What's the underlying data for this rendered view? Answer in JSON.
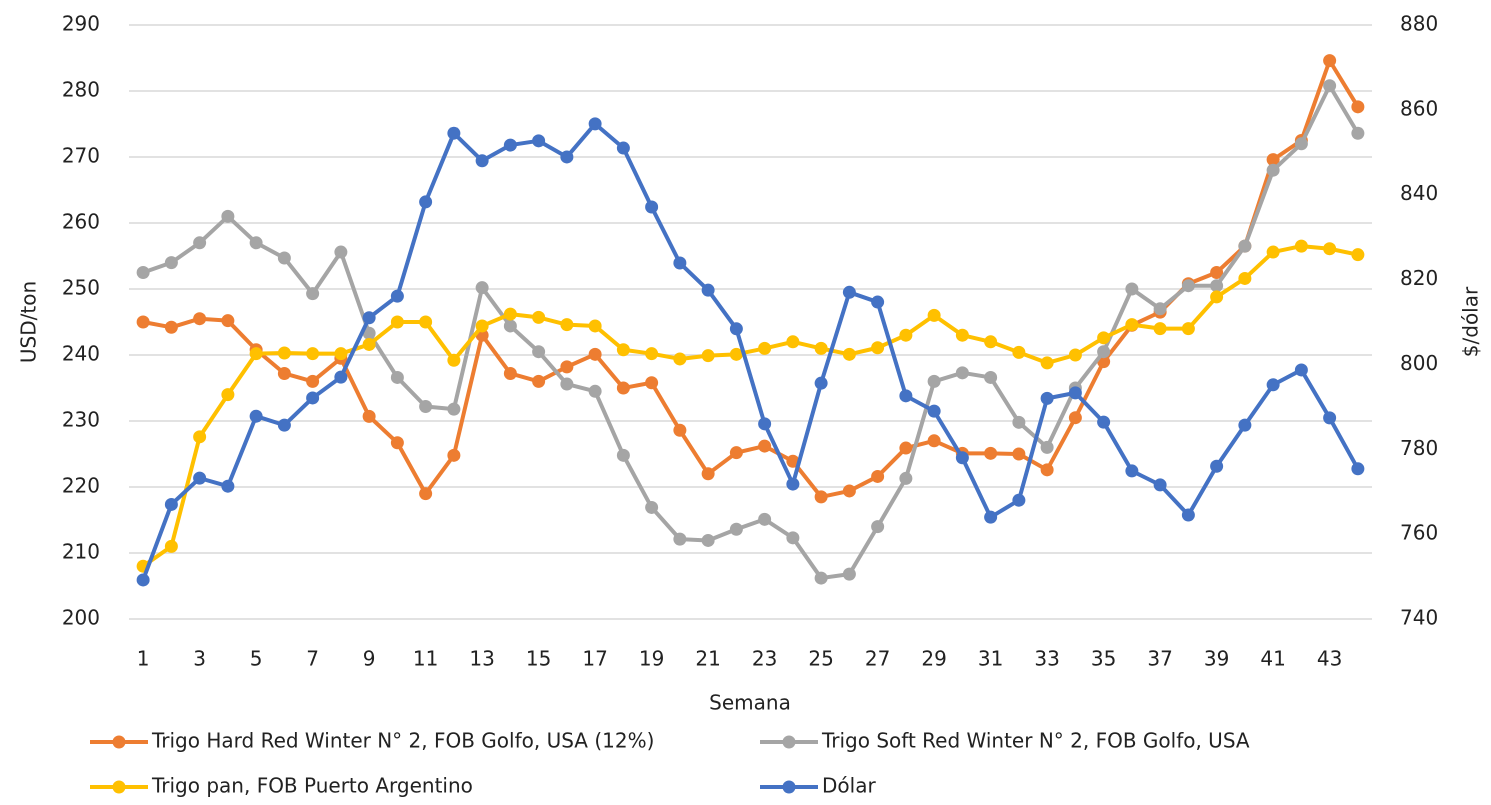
{
  "chart_data": {
    "type": "line",
    "x_label": "Semana",
    "y_label": "USD/ton",
    "y2_label": "$/dólar",
    "categories": [
      1,
      null,
      3,
      null,
      5,
      null,
      7,
      null,
      9,
      null,
      11,
      null,
      13,
      null,
      15,
      null,
      17,
      null,
      19,
      null,
      21,
      null,
      23,
      null,
      25,
      null,
      27,
      null,
      29,
      null,
      31,
      null,
      33,
      null,
      35,
      null,
      37,
      null,
      39,
      null,
      41,
      null,
      43,
      null
    ],
    "ylim": [
      200,
      290
    ],
    "yticks": [
      200,
      210,
      220,
      230,
      240,
      250,
      260,
      270,
      280,
      290
    ],
    "y2lim": [
      740,
      880
    ],
    "y2ticks": [
      740,
      760,
      780,
      800,
      820,
      840,
      860,
      880
    ],
    "grid": true,
    "legend": "bottom",
    "series": [
      {
        "name": "Trigo Hard Red Winter N° 2, FOB Golfo, USA (12%)",
        "color": "#ed7d31",
        "values": [
          245,
          244.2,
          245.5,
          245.2,
          240.8,
          237.2,
          236,
          239.5,
          230.7,
          226.7,
          219,
          224.8,
          243,
          237.2,
          236,
          238.2,
          240.1,
          235,
          235.8,
          228.6,
          222,
          225.2,
          226.2,
          223.9,
          218.5,
          219.4,
          221.6,
          225.9,
          227,
          225.1,
          225.1,
          225,
          222.6,
          230.5,
          239,
          244.5,
          246.5,
          250.8,
          252.5,
          256.5,
          269.6,
          272.5,
          284.6,
          277.6
        ]
      },
      {
        "name": "Trigo Soft Red Winter N° 2, FOB Golfo, USA",
        "color": "#a5a5a5",
        "values": [
          252.5,
          254,
          257,
          261,
          257,
          254.7,
          249.3,
          255.6,
          243.3,
          236.6,
          232.2,
          231.8,
          250.2,
          244.4,
          240.5,
          235.6,
          234.5,
          224.8,
          216.9,
          212.1,
          211.9,
          213.6,
          215.1,
          212.3,
          206.2,
          206.8,
          214,
          221.3,
          236,
          237.3,
          236.6,
          229.8,
          226,
          235,
          240.5,
          250,
          247,
          250.5,
          250.5,
          256.5,
          268,
          272,
          280.8,
          273.6
        ]
      },
      {
        "name": "Trigo pan, FOB Puerto Argentino",
        "color": "#ffc000",
        "values": [
          208,
          211,
          227.6,
          234,
          240.2,
          240.3,
          240.2,
          240.2,
          241.6,
          245,
          245,
          239.2,
          244.4,
          246.2,
          245.7,
          244.6,
          244.4,
          240.8,
          240.2,
          239.4,
          239.9,
          240.1,
          241,
          242,
          241,
          240.1,
          241.1,
          243,
          246,
          243,
          242,
          240.4,
          238.8,
          240,
          242.6,
          244.6,
          244,
          244,
          248.8,
          251.6,
          255.6,
          256.5,
          256.1,
          255.2
        ]
      },
      {
        "name": "Dólar",
        "color": "#4472c4",
        "axis": "y2",
        "values": [
          749.2,
          767,
          773.2,
          771.3,
          787.8,
          785.7,
          792.1,
          797,
          811,
          816.1,
          838.3,
          854.5,
          848,
          851.7,
          852.7,
          848.9,
          856.7,
          851,
          837.1,
          823.9,
          817.5,
          808.4,
          786,
          771.8,
          795.6,
          817,
          814.7,
          792.6,
          789,
          778,
          764,
          768,
          792,
          793.3,
          786.4,
          774.9,
          771.6,
          764.5,
          776,
          785.7,
          795.2,
          798.7,
          787.4,
          775.4
        ]
      }
    ]
  }
}
